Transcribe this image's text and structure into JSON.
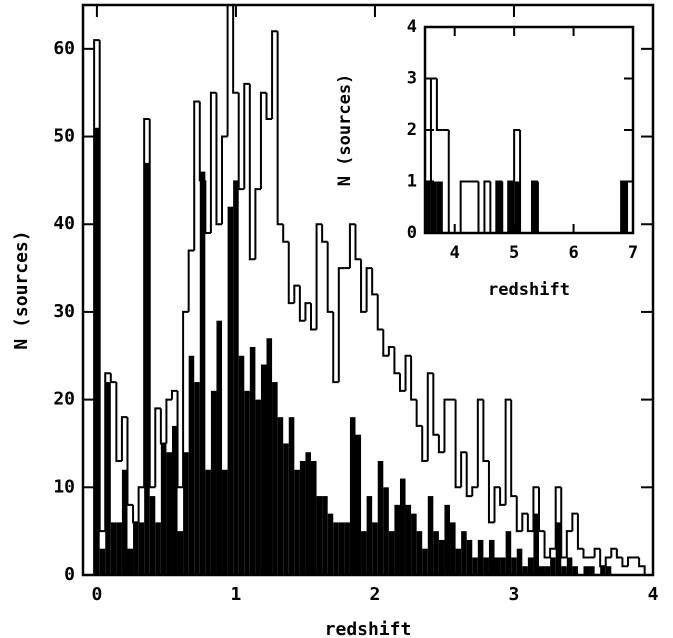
{
  "chart_data": [
    {
      "type": "histogram",
      "xlabel": "redshift",
      "ylabel": "N (sources)",
      "xlim": [
        -0.1,
        4
      ],
      "ylim": [
        0,
        65
      ],
      "xticks": [
        0,
        1,
        2,
        3,
        4
      ],
      "yticks": [
        0,
        10,
        20,
        30,
        40,
        50,
        60
      ],
      "bins": [
        -0.02,
        0.02,
        0.06,
        0.1,
        0.14,
        0.18,
        0.22,
        0.26,
        0.3,
        0.34,
        0.38,
        0.42,
        0.46,
        0.5,
        0.54,
        0.58,
        0.62,
        0.66,
        0.7,
        0.74,
        0.78,
        0.82,
        0.86,
        0.9,
        0.94,
        0.98,
        1.02,
        1.06,
        1.1,
        1.14,
        1.18,
        1.22,
        1.26,
        1.3,
        1.34,
        1.38,
        1.42,
        1.46,
        1.5,
        1.54,
        1.58,
        1.62,
        1.66,
        1.7,
        1.74,
        1.78,
        1.82,
        1.86,
        1.9,
        1.94,
        1.98,
        2.02,
        2.06,
        2.1,
        2.14,
        2.18,
        2.22,
        2.26,
        2.3,
        2.34,
        2.38,
        2.42,
        2.46,
        2.5,
        2.54,
        2.58,
        2.62,
        2.66,
        2.7,
        2.74,
        2.78,
        2.82,
        2.86,
        2.9,
        2.94,
        2.98,
        3.02,
        3.06,
        3.1,
        3.14,
        3.18,
        3.22,
        3.26,
        3.3,
        3.34,
        3.38,
        3.42,
        3.46,
        3.5,
        3.54,
        3.58,
        3.62,
        3.66,
        3.7,
        3.74,
        3.78,
        3.82,
        3.86,
        3.9,
        3.94
      ],
      "series": [
        {
          "color": "#000000",
          "filled": false,
          "values": [
            61,
            5,
            23,
            22,
            13,
            18,
            8,
            6,
            10,
            52,
            10,
            19,
            15,
            20,
            21,
            10,
            30,
            37,
            54,
            45,
            39,
            55,
            40,
            50,
            65,
            55,
            44,
            56,
            36,
            44,
            55,
            52,
            62,
            40,
            38,
            31,
            33,
            29,
            31,
            28,
            40,
            38,
            30,
            22,
            35,
            35,
            40,
            36,
            30,
            35,
            32,
            28,
            25,
            26,
            23,
            21,
            25,
            20,
            17,
            13,
            23,
            16,
            14,
            20,
            20,
            10,
            14,
            9,
            10,
            20,
            13,
            6,
            10,
            8,
            20,
            9,
            5,
            7,
            5,
            10,
            5,
            2,
            3,
            10,
            2,
            5,
            7,
            3,
            2,
            2,
            3,
            1,
            2,
            3,
            2,
            1,
            2,
            2,
            1
          ]
        },
        {
          "color": "#000000",
          "filled": true,
          "values": [
            51,
            3,
            22,
            6,
            6,
            12,
            3,
            6,
            6,
            47,
            9,
            6,
            15,
            14,
            17,
            5,
            14,
            25,
            22,
            46,
            12,
            21,
            29,
            12,
            42,
            45,
            25,
            21,
            26,
            20,
            24,
            27,
            22,
            18,
            15,
            18,
            12,
            13,
            14,
            13,
            9,
            9,
            7,
            6,
            6,
            6,
            18,
            16,
            5,
            9,
            6,
            13,
            10,
            5,
            8,
            11,
            8,
            7,
            5,
            3,
            9,
            5,
            4,
            8,
            6,
            3,
            5,
            4,
            2,
            4,
            2,
            4,
            2,
            2,
            5,
            2,
            3,
            1,
            2,
            7,
            1,
            1,
            2,
            6,
            1,
            2,
            1,
            0,
            1,
            1,
            0,
            1,
            1,
            0,
            0,
            0,
            0,
            0,
            0
          ]
        }
      ]
    },
    {
      "type": "histogram",
      "xlabel": "redshift",
      "ylabel": "N (sources)",
      "xlim": [
        3.5,
        7
      ],
      "ylim": [
        0,
        4
      ],
      "xticks": [
        4,
        5,
        6,
        7
      ],
      "yticks": [
        0,
        1,
        2,
        3,
        4
      ],
      "bins": [
        3.5,
        3.6,
        3.7,
        3.8,
        3.9,
        4,
        4.1,
        4.2,
        4.3,
        4.4,
        4.5,
        4.6,
        4.7,
        4.8,
        4.9,
        5,
        5.1,
        5.2,
        5.3,
        5.4,
        5.5,
        5.6,
        5.7,
        5.8,
        5.9,
        6,
        6.1,
        6.2,
        6.3,
        6.4,
        6.5,
        6.6,
        6.7,
        6.8,
        6.9,
        7
      ],
      "series": [
        {
          "color": "#000000",
          "filled": false,
          "values": [
            1,
            3,
            2,
            2,
            0,
            0,
            1,
            1,
            1,
            0,
            1,
            0,
            1,
            0,
            1,
            2,
            0,
            0,
            1,
            0,
            0,
            0,
            0,
            0,
            0,
            0,
            0,
            0,
            0,
            0,
            0,
            0,
            0,
            1,
            0
          ]
        },
        {
          "color": "#000000",
          "filled": true,
          "values": [
            1,
            1,
            1,
            0,
            0,
            0,
            0,
            0,
            0,
            0,
            0,
            0,
            1,
            0,
            1,
            1,
            0,
            0,
            1,
            0,
            0,
            0,
            0,
            0,
            0,
            0,
            0,
            0,
            0,
            0,
            0,
            0,
            0,
            1,
            0
          ]
        }
      ]
    }
  ]
}
